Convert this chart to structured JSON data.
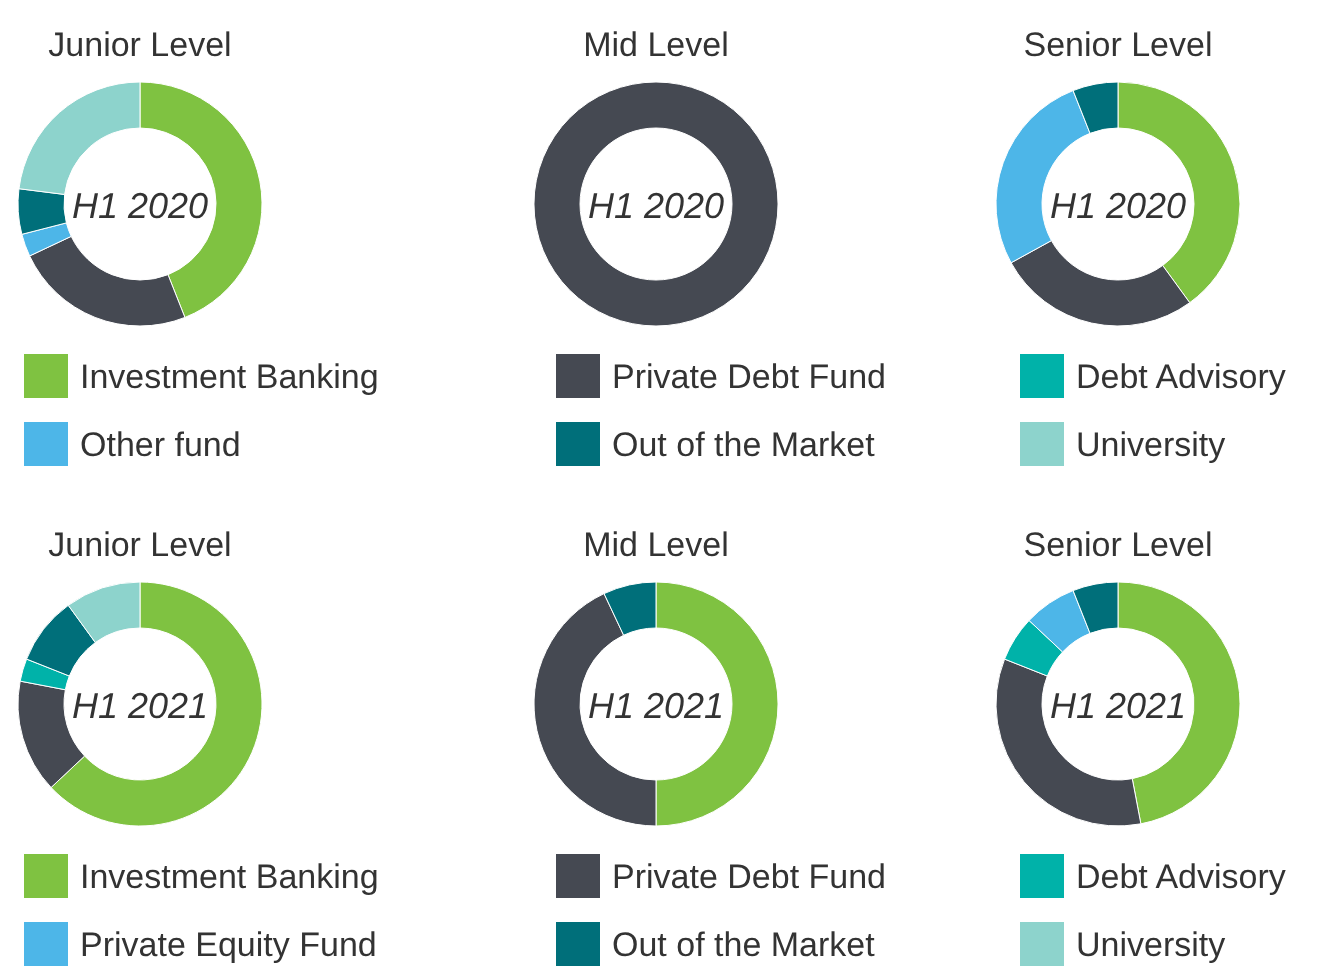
{
  "chart_data": [
    {
      "type": "donut",
      "legend": "bottom",
      "annotations": [
        "H1 2020",
        "H1 2020",
        "H1 2020"
      ],
      "categories": [
        "Investment Banking",
        "Private Debt Fund",
        "Debt Advisory",
        "Other fund",
        "Out of the Market",
        "University"
      ],
      "colors": [
        "#7fc241",
        "#454952",
        "#00b2a9",
        "#4db6e8",
        "#006f7a",
        "#8dd3cc"
      ],
      "series": [
        {
          "name": "Junior Level",
          "values": [
            44,
            24,
            null,
            3,
            6,
            23
          ]
        },
        {
          "name": "Mid Level",
          "values": [
            null,
            100,
            null,
            null,
            null,
            null
          ]
        },
        {
          "name": "Senior Level",
          "values": [
            40,
            27,
            null,
            27,
            6,
            null
          ]
        }
      ]
    },
    {
      "type": "donut",
      "legend": "bottom",
      "annotations": [
        "H1 2021",
        "H1 2021",
        "H1 2021"
      ],
      "categories": [
        "Investment Banking",
        "Private Debt Fund",
        "Debt Advisory",
        "Private Equity Fund",
        "Out of the Market",
        "University"
      ],
      "colors": [
        "#7fc241",
        "#454952",
        "#00b2a9",
        "#4db6e8",
        "#006f7a",
        "#8dd3cc"
      ],
      "series": [
        {
          "name": "Junior Level",
          "values": [
            63,
            15,
            3,
            null,
            9,
            10
          ]
        },
        {
          "name": "Mid Level",
          "values": [
            50,
            43,
            null,
            null,
            7,
            null
          ]
        },
        {
          "name": "Senior Level",
          "values": [
            47,
            34,
            6,
            7,
            6,
            null
          ]
        }
      ]
    }
  ]
}
